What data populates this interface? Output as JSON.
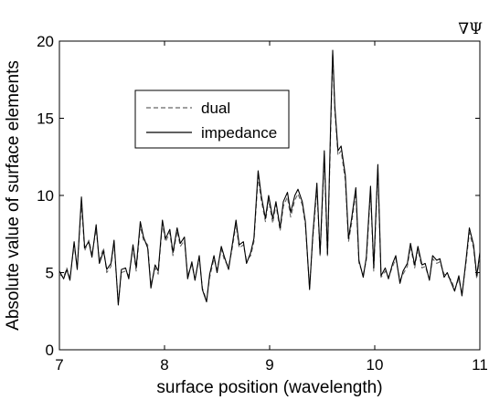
{
  "chart_data": {
    "type": "line",
    "title": "",
    "corner_label": "∇Ψ",
    "xlabel": "surface position (wavelength)",
    "ylabel": "Absolute value of surface elements",
    "xlim": [
      7,
      11
    ],
    "ylim": [
      0,
      20
    ],
    "xticks": [
      7,
      8,
      9,
      10,
      11
    ],
    "yticks": [
      0,
      5,
      10,
      15,
      20
    ],
    "grid": false,
    "legend_position": "upper-left",
    "series": [
      {
        "name": "dual",
        "style": "dashed",
        "color": "#666666",
        "points": [
          [
            7.0,
            4.9
          ],
          [
            7.04,
            4.7
          ],
          [
            7.07,
            5.3
          ],
          [
            7.1,
            4.6
          ],
          [
            7.14,
            6.8
          ],
          [
            7.17,
            5.3
          ],
          [
            7.21,
            9.5
          ],
          [
            7.24,
            6.4
          ],
          [
            7.28,
            7.1
          ],
          [
            7.31,
            6.2
          ],
          [
            7.35,
            7.8
          ],
          [
            7.38,
            5.8
          ],
          [
            7.42,
            6.6
          ],
          [
            7.45,
            5.0
          ],
          [
            7.49,
            5.4
          ],
          [
            7.52,
            6.9
          ],
          [
            7.56,
            3.0
          ],
          [
            7.59,
            5.0
          ],
          [
            7.63,
            5.1
          ],
          [
            7.66,
            4.8
          ],
          [
            7.7,
            6.6
          ],
          [
            7.73,
            5.1
          ],
          [
            7.77,
            8.0
          ],
          [
            7.8,
            7.1
          ],
          [
            7.84,
            6.8
          ],
          [
            7.87,
            4.2
          ],
          [
            7.91,
            5.3
          ],
          [
            7.94,
            4.9
          ],
          [
            7.98,
            8.2
          ],
          [
            8.01,
            7.0
          ],
          [
            8.05,
            7.6
          ],
          [
            8.08,
            6.1
          ],
          [
            8.12,
            7.7
          ],
          [
            8.15,
            6.7
          ],
          [
            8.19,
            7.1
          ],
          [
            8.22,
            4.8
          ],
          [
            8.26,
            5.5
          ],
          [
            8.29,
            4.6
          ],
          [
            8.33,
            5.9
          ],
          [
            8.36,
            4.0
          ],
          [
            8.4,
            3.2
          ],
          [
            8.43,
            4.7
          ],
          [
            8.47,
            5.9
          ],
          [
            8.5,
            5.2
          ],
          [
            8.54,
            6.5
          ],
          [
            8.57,
            5.8
          ],
          [
            8.61,
            5.4
          ],
          [
            8.64,
            6.4
          ],
          [
            8.68,
            8.1
          ],
          [
            8.71,
            6.6
          ],
          [
            8.75,
            6.8
          ],
          [
            8.78,
            5.8
          ],
          [
            8.82,
            6.1
          ],
          [
            8.85,
            7.0
          ],
          [
            8.89,
            11.2
          ],
          [
            8.92,
            9.7
          ],
          [
            8.96,
            8.3
          ],
          [
            8.99,
            9.7
          ],
          [
            9.03,
            8.2
          ],
          [
            9.06,
            9.4
          ],
          [
            9.1,
            7.7
          ],
          [
            9.13,
            9.3
          ],
          [
            9.17,
            9.9
          ],
          [
            9.2,
            8.6
          ],
          [
            9.24,
            9.7
          ],
          [
            9.27,
            10.1
          ],
          [
            9.31,
            9.4
          ],
          [
            9.34,
            8.1
          ],
          [
            9.38,
            4.0
          ],
          [
            9.41,
            7.2
          ],
          [
            9.45,
            10.4
          ],
          [
            9.48,
            6.1
          ],
          [
            9.52,
            12.5
          ],
          [
            9.55,
            6.0
          ],
          [
            9.58,
            14.0
          ],
          [
            9.6,
            19.2
          ],
          [
            9.62,
            15.5
          ],
          [
            9.65,
            12.6
          ],
          [
            9.68,
            12.9
          ],
          [
            9.72,
            11.0
          ],
          [
            9.75,
            7.0
          ],
          [
            9.78,
            8.2
          ],
          [
            9.82,
            10.2
          ],
          [
            9.85,
            5.6
          ],
          [
            9.89,
            4.9
          ],
          [
            9.92,
            5.8
          ],
          [
            9.96,
            10.3
          ],
          [
            9.99,
            5.1
          ],
          [
            10.03,
            11.7
          ],
          [
            10.06,
            4.7
          ],
          [
            10.1,
            5.1
          ],
          [
            10.13,
            4.7
          ],
          [
            10.17,
            5.4
          ],
          [
            10.2,
            5.9
          ],
          [
            10.24,
            4.5
          ],
          [
            10.27,
            4.9
          ],
          [
            10.31,
            5.4
          ],
          [
            10.34,
            6.7
          ],
          [
            10.38,
            5.3
          ],
          [
            10.41,
            6.5
          ],
          [
            10.45,
            5.3
          ],
          [
            10.48,
            5.4
          ],
          [
            10.52,
            4.6
          ],
          [
            10.55,
            5.9
          ],
          [
            10.59,
            5.6
          ],
          [
            10.62,
            5.7
          ],
          [
            10.66,
            4.9
          ],
          [
            10.69,
            4.8
          ],
          [
            10.73,
            4.5
          ],
          [
            10.76,
            3.9
          ],
          [
            10.8,
            4.6
          ],
          [
            10.83,
            3.6
          ],
          [
            10.87,
            5.7
          ],
          [
            10.9,
            7.6
          ],
          [
            10.94,
            6.6
          ],
          [
            10.97,
            4.6
          ],
          [
            11.0,
            6.1
          ]
        ]
      },
      {
        "name": "impedance",
        "style": "solid",
        "color": "#000000",
        "points": [
          [
            7.0,
            5.1
          ],
          [
            7.04,
            4.6
          ],
          [
            7.07,
            5.2
          ],
          [
            7.1,
            4.5
          ],
          [
            7.14,
            7.0
          ],
          [
            7.17,
            5.2
          ],
          [
            7.21,
            9.9
          ],
          [
            7.24,
            6.6
          ],
          [
            7.28,
            7.0
          ],
          [
            7.31,
            6.0
          ],
          [
            7.35,
            8.1
          ],
          [
            7.38,
            5.6
          ],
          [
            7.42,
            6.4
          ],
          [
            7.45,
            5.2
          ],
          [
            7.49,
            5.6
          ],
          [
            7.52,
            7.1
          ],
          [
            7.56,
            2.9
          ],
          [
            7.59,
            5.2
          ],
          [
            7.63,
            5.3
          ],
          [
            7.66,
            4.6
          ],
          [
            7.7,
            6.8
          ],
          [
            7.73,
            5.3
          ],
          [
            7.77,
            8.3
          ],
          [
            7.8,
            7.3
          ],
          [
            7.84,
            6.6
          ],
          [
            7.87,
            4.0
          ],
          [
            7.91,
            5.5
          ],
          [
            7.94,
            5.1
          ],
          [
            7.98,
            8.4
          ],
          [
            8.01,
            7.2
          ],
          [
            8.05,
            7.8
          ],
          [
            8.08,
            6.3
          ],
          [
            8.12,
            7.9
          ],
          [
            8.15,
            6.9
          ],
          [
            8.19,
            7.3
          ],
          [
            8.22,
            4.6
          ],
          [
            8.26,
            5.7
          ],
          [
            8.29,
            4.5
          ],
          [
            8.33,
            6.1
          ],
          [
            8.36,
            3.9
          ],
          [
            8.4,
            3.1
          ],
          [
            8.43,
            4.9
          ],
          [
            8.47,
            6.1
          ],
          [
            8.5,
            5.0
          ],
          [
            8.54,
            6.7
          ],
          [
            8.57,
            6.0
          ],
          [
            8.61,
            5.2
          ],
          [
            8.64,
            6.6
          ],
          [
            8.68,
            8.4
          ],
          [
            8.71,
            6.8
          ],
          [
            8.75,
            7.0
          ],
          [
            8.78,
            5.6
          ],
          [
            8.82,
            6.3
          ],
          [
            8.85,
            7.2
          ],
          [
            8.89,
            11.6
          ],
          [
            8.92,
            10.0
          ],
          [
            8.96,
            8.5
          ],
          [
            8.99,
            10.0
          ],
          [
            9.03,
            8.5
          ],
          [
            9.06,
            9.6
          ],
          [
            9.1,
            7.9
          ],
          [
            9.13,
            9.6
          ],
          [
            9.17,
            10.2
          ],
          [
            9.2,
            8.9
          ],
          [
            9.24,
            10.0
          ],
          [
            9.27,
            10.4
          ],
          [
            9.31,
            9.6
          ],
          [
            9.34,
            8.3
          ],
          [
            9.38,
            3.9
          ],
          [
            9.41,
            7.4
          ],
          [
            9.45,
            10.8
          ],
          [
            9.48,
            6.2
          ],
          [
            9.52,
            12.9
          ],
          [
            9.55,
            6.2
          ],
          [
            9.58,
            14.5
          ],
          [
            9.6,
            19.4
          ],
          [
            9.62,
            15.8
          ],
          [
            9.65,
            12.9
          ],
          [
            9.68,
            13.2
          ],
          [
            9.72,
            11.3
          ],
          [
            9.75,
            7.2
          ],
          [
            9.78,
            8.5
          ],
          [
            9.82,
            10.5
          ],
          [
            9.85,
            5.8
          ],
          [
            9.89,
            4.7
          ],
          [
            9.92,
            6.0
          ],
          [
            9.96,
            10.6
          ],
          [
            9.99,
            5.3
          ],
          [
            10.03,
            12.0
          ],
          [
            10.06,
            4.8
          ],
          [
            10.1,
            5.3
          ],
          [
            10.13,
            4.6
          ],
          [
            10.17,
            5.6
          ],
          [
            10.2,
            6.1
          ],
          [
            10.24,
            4.3
          ],
          [
            10.27,
            5.1
          ],
          [
            10.31,
            5.6
          ],
          [
            10.34,
            6.9
          ],
          [
            10.38,
            5.5
          ],
          [
            10.41,
            6.7
          ],
          [
            10.45,
            5.5
          ],
          [
            10.48,
            5.6
          ],
          [
            10.52,
            4.5
          ],
          [
            10.55,
            6.1
          ],
          [
            10.59,
            5.8
          ],
          [
            10.62,
            5.9
          ],
          [
            10.66,
            4.7
          ],
          [
            10.69,
            5.0
          ],
          [
            10.73,
            4.3
          ],
          [
            10.76,
            3.8
          ],
          [
            10.8,
            4.8
          ],
          [
            10.83,
            3.5
          ],
          [
            10.87,
            5.9
          ],
          [
            10.9,
            7.9
          ],
          [
            10.94,
            6.8
          ],
          [
            10.97,
            4.8
          ],
          [
            11.0,
            6.3
          ]
        ]
      }
    ]
  }
}
